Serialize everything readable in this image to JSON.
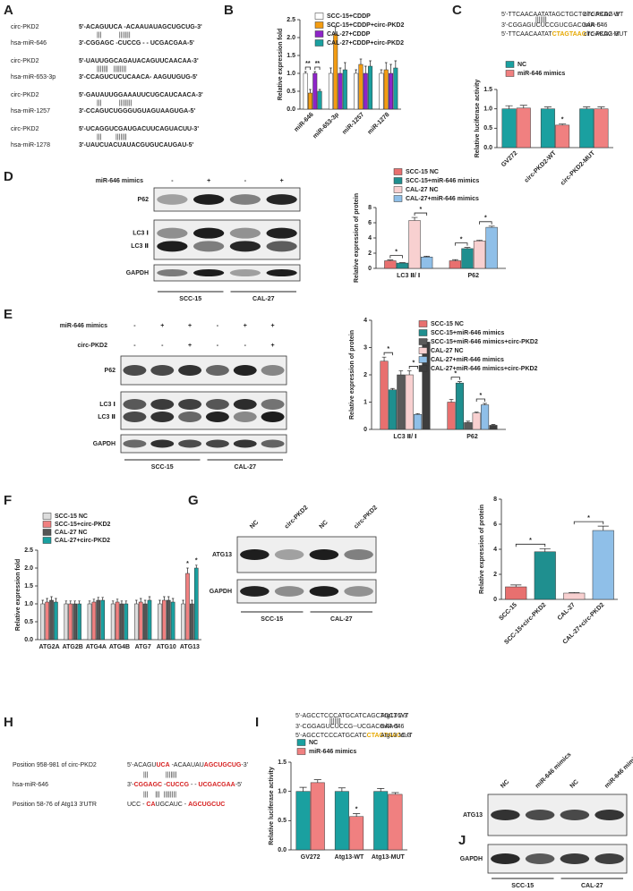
{
  "panel_labels": [
    "A",
    "B",
    "C",
    "D",
    "E",
    "F",
    "G",
    "H",
    "I",
    "J"
  ],
  "panel_a": [
    {
      "target": "circ-PKD2",
      "target_seq": "5'-ACAGUUCA -ACAAUAUAGCUGCUG-3'",
      "match": "|||          |||||||",
      "mirna": "hsa-miR-646",
      "mirna_seq": "3'-CGGAGC -CUCCG - - UCGACGAA-5'"
    },
    {
      "target": "circ-PKD2",
      "target_seq": "5'-UAUUGGCAGAUACAGUUCAACAA-3'",
      "match": "|||||||   ||||||||",
      "mirna": "hsa-miR-653-3p",
      "mirna_seq": "3'-CCAGUCUCUCAACA- AAGUUGUG-5'"
    },
    {
      "target": "circ-PKD2",
      "target_seq": "5'-GAUAUUGGAAAUUCUGCAUCAACA-3'",
      "match": "|||          ||||||||",
      "mirna": "hsa-miR-1257",
      "mirna_seq": "3'-CCAGUCUGGGUGUAGUAAGUGA-5'"
    },
    {
      "target": "circ-PKD2",
      "target_seq": "5'-UCAGGUCGAUGACUUCAGUACUU-3'",
      "match": "|||        |||||||",
      "mirna": "hsa-miR-1278",
      "mirna_seq": "3'-UAUCUACUAUACGUGUCAUGAU-5'"
    }
  ],
  "luciferase_c": {
    "wt": {
      "parts": [
        "5'-TTCAACAATATAGCTGCTGTCACAG-3'"
      ],
      "name": "circ-PKD2 WT"
    },
    "match": "|||||||",
    "mirna": {
      "parts": [
        "3'-CGGAGUCUCCGUCGACGAA-5'"
      ],
      "name": "miR-646"
    },
    "mut": {
      "parts": [
        "5'-TTCAACAATAT",
        "CTAGTAAG",
        "TCACAG-3'"
      ],
      "name": "circ-PKD2 MUT"
    }
  },
  "luciferase_i": {
    "wt": {
      "parts": [
        "5'-AGCCTCCCATGCATCAGCTGCTC-3'"
      ],
      "name": "Atg13 WT"
    },
    "match": "|||||||",
    "mirna": {
      "parts": [
        "3'-CGGAGUCUCCG--UCGACGAA-5'"
      ],
      "name": "miR-646"
    },
    "mut": {
      "parts": [
        "5'-AGCCTCCCATGCATC",
        "CTAGTAAC",
        "C-3'"
      ],
      "name": "Atg13 MUT"
    }
  },
  "panel_h": {
    "rows": [
      {
        "label": "Position 958-981 of circ-PKD2",
        "parts": [
          "5'-ACAGU",
          "UCA",
          " -ACAAUAU",
          "AGCUGCUG",
          "-3'"
        ]
      },
      {
        "label": "hsa-miR-646",
        "parts": [
          "3'-",
          "CGGAGC",
          " -",
          "CUCCG",
          " - - ",
          "UCGACGAA",
          "-5'"
        ]
      },
      {
        "label": "Position 58-76 of Atg13 3'UTR",
        "parts": [
          "UCC - ",
          "CA",
          "UGCAUC - ",
          "AGCUGCUC"
        ]
      }
    ],
    "matches": [
      "|||          |||||||",
      "|||    |||  ||||||||"
    ]
  },
  "blots": [
    {
      "treatments": [
        {
          "label": "miR-646 mimics",
          "signs": [
            "-",
            "+",
            "-",
            "+"
          ]
        }
      ],
      "rows": [
        [
          "P62"
        ],
        [
          "LC3 Ⅰ",
          "LC3 Ⅱ"
        ],
        [
          "GAPDH"
        ]
      ],
      "groups": [
        "SCC-15",
        "CAL-27"
      ]
    },
    {
      "treatments": [
        {
          "label": "miR-646 mimics",
          "signs": [
            "-",
            "+",
            "+",
            "-",
            "+",
            "+"
          ]
        },
        {
          "label": "circ-PKD2",
          "signs": [
            "-",
            "-",
            "+",
            "-",
            "-",
            "+"
          ]
        }
      ],
      "rows": [
        [
          "P62"
        ],
        [
          "LC3 Ⅰ",
          "LC3 Ⅱ"
        ],
        [
          "GAPDH"
        ]
      ],
      "groups": [
        "SCC-15",
        "CAL-27"
      ]
    },
    {
      "lanes": [
        "NC",
        "circ-PKD2",
        "NC",
        "circ-PKD2"
      ],
      "rows": [
        [
          "ATG13"
        ],
        [
          "GAPDH"
        ]
      ],
      "groups": [
        "SCC-15",
        "CAL-27"
      ]
    },
    {
      "lanes": [
        "NC",
        "miR-646 mimics",
        "NC",
        "miR-646 mimics"
      ],
      "rows": [
        [
          "ATG13"
        ],
        [
          "GAPDH"
        ]
      ],
      "groups": [
        "SCC-15",
        "CAL-27"
      ]
    }
  ],
  "chart_data": [
    {
      "type": "bar",
      "y_label": "Relative expression fold",
      "categories": [
        "miR-646",
        "miR-653-3p",
        "miR-1257",
        "miR-1278"
      ],
      "ylim": [
        0,
        2.5
      ],
      "yticks": [
        {
          "value": 0,
          "label": "0.0"
        },
        0.5,
        {
          "value": 1,
          "label": "1.0"
        },
        1.5,
        {
          "value": 2,
          "label": "2.0"
        },
        2.5
      ],
      "series": [
        {
          "name": "SCC-15+CDDP",
          "color": "#ffffff",
          "values": [
            1.0,
            1.0,
            1.0,
            1.0
          ],
          "errors": [
            0.05,
            0.15,
            0.1,
            0.1
          ]
        },
        {
          "name": "SCC-15+CDDP+circ-PKD2",
          "color": "#f39c12",
          "values": [
            0.45,
            2.1,
            1.25,
            1.1
          ],
          "errors": [
            0.1,
            0.2,
            0.15,
            0.2
          ]
        },
        {
          "name": "CAL-27+CDDP",
          "color": "#8e24c8",
          "values": [
            1.0,
            1.0,
            1.0,
            1.0
          ],
          "errors": [
            0.05,
            0.15,
            0.2,
            0.25
          ]
        },
        {
          "name": "CAL-27+CDDP+circ-PKD2",
          "color": "#1aa0a0",
          "values": [
            0.5,
            1.1,
            1.2,
            1.15
          ],
          "errors": [
            0.05,
            0.2,
            0.15,
            0.2
          ]
        }
      ],
      "annotations": [
        "**",
        "**"
      ]
    },
    {
      "type": "bar",
      "y_label": "Relative luciferase activity",
      "categories": [
        "GV272",
        "circ-PKD2-WT",
        "circ-PKD2-MUT"
      ],
      "ylim": [
        0,
        1.5
      ],
      "yticks": [
        {
          "value": 0,
          "label": "0.0"
        },
        0.5,
        {
          "value": 1,
          "label": "1.0"
        },
        1.5
      ],
      "series": [
        {
          "name": "NC",
          "color": "#1aa0a0",
          "values": [
            1.0,
            1.0,
            1.0
          ],
          "errors": [
            0.08,
            0.05,
            0.05
          ]
        },
        {
          "name": "miR-646 mimics",
          "color": "#f08080",
          "values": [
            1.02,
            0.58,
            1.0
          ],
          "errors": [
            0.07,
            0.03,
            0.05
          ]
        }
      ],
      "annotations": [
        "*"
      ]
    },
    {
      "type": "bar",
      "y_label": "Relative expression of protein",
      "categories": [
        "LC3 Ⅱ/ Ⅰ",
        "P62"
      ],
      "ylim": [
        0,
        8
      ],
      "yticks": [
        0,
        2,
        4,
        6,
        8
      ],
      "series": [
        {
          "name": "SCC-15 NC",
          "color": "#e8706f",
          "values": [
            1.0,
            1.0
          ],
          "errors": [
            0.1,
            0.15
          ]
        },
        {
          "name": "SCC-15+miR-646 mimics",
          "color": "#1f8f8f",
          "values": [
            0.7,
            2.6
          ],
          "errors": [
            0.05,
            0.15
          ]
        },
        {
          "name": "CAL-27 NC",
          "color": "#f8d0d0",
          "values": [
            6.3,
            3.6
          ],
          "errors": [
            0.4,
            0.1
          ]
        },
        {
          "name": "CAL-27+miR-646 mimics",
          "color": "#8fbfe8",
          "values": [
            1.5,
            5.4
          ],
          "errors": [
            0.1,
            0.15
          ]
        }
      ],
      "annotations": [
        "*",
        "*",
        "*",
        "*"
      ]
    },
    {
      "type": "bar",
      "y_label": "Relative expression of protein",
      "categories": [
        "LC3 Ⅱ/ Ⅰ",
        "P62"
      ],
      "ylim": [
        0,
        4
      ],
      "yticks": [
        0,
        1,
        2,
        3,
        4
      ],
      "series": [
        {
          "name": "SCC-15 NC",
          "color": "#e8706f",
          "values": [
            2.5,
            1.0
          ],
          "errors": [
            0.15,
            0.1
          ]
        },
        {
          "name": "SCC-15+miR-646 mimics",
          "color": "#1f8f8f",
          "values": [
            1.45,
            1.7
          ],
          "errors": [
            0.05,
            0.05
          ]
        },
        {
          "name": "SCC-15+miR-646 mimics+circ-PKD2",
          "color": "#5a5a5a",
          "values": [
            2.0,
            0.25
          ],
          "errors": [
            0.15,
            0.05
          ]
        },
        {
          "name": "CAL-27 NC",
          "color": "#f8d0d0",
          "values": [
            2.0,
            0.6
          ],
          "errors": [
            0.15,
            0.03
          ]
        },
        {
          "name": "CAL-27+miR-646 mimics",
          "color": "#8fbfe8",
          "values": [
            0.55,
            0.9
          ],
          "errors": [
            0.03,
            0.05
          ]
        },
        {
          "name": "CAL-27+miR-646 mimics+circ-PKD2",
          "color": "#3d3d3d",
          "values": [
            3.2,
            0.15
          ],
          "errors": [
            0.08,
            0.03
          ]
        }
      ],
      "annotations": [
        "*",
        "*",
        "*",
        "*"
      ]
    },
    {
      "type": "bar",
      "y_label": "Relative expression fold",
      "categories": [
        "ATG2A",
        "ATG2B",
        "ATG4A",
        "ATG4B",
        "ATG7",
        "ATG10",
        "ATG13"
      ],
      "ylim": [
        0,
        2.5
      ],
      "yticks": [
        {
          "value": 0,
          "label": "0.0"
        },
        0.5,
        {
          "value": 1,
          "label": "1.0"
        },
        1.5,
        {
          "value": 2,
          "label": "2.0"
        },
        2.5
      ],
      "series": [
        {
          "name": "SCC-15 NC",
          "color": "#dddddd",
          "values": [
            1.0,
            1.0,
            1.0,
            1.0,
            1.0,
            1.0,
            1.0
          ],
          "errors": [
            0.1,
            0.08,
            0.08,
            0.08,
            0.1,
            0.1,
            0.1
          ]
        },
        {
          "name": "SCC-15+circ-PKD2",
          "color": "#f08080",
          "values": [
            1.05,
            1.0,
            1.05,
            1.05,
            1.05,
            1.1,
            1.85
          ],
          "errors": [
            0.1,
            0.08,
            0.08,
            0.08,
            0.1,
            0.1,
            0.15
          ]
        },
        {
          "name": "CAL-27 NC",
          "color": "#555555",
          "values": [
            1.1,
            1.0,
            1.1,
            1.0,
            1.0,
            1.1,
            1.0
          ],
          "errors": [
            0.1,
            0.08,
            0.08,
            0.08,
            0.1,
            0.1,
            0.1
          ]
        },
        {
          "name": "CAL-27+circ-PKD2",
          "color": "#1aa0a0",
          "values": [
            1.05,
            1.0,
            1.1,
            1.0,
            1.1,
            1.05,
            2.0
          ],
          "errors": [
            0.1,
            0.08,
            0.08,
            0.08,
            0.1,
            0.1,
            0.08
          ]
        }
      ],
      "annotations": [
        "*",
        "*"
      ]
    },
    {
      "type": "bar",
      "y_label": "Relative expression of protein",
      "categories": [
        "SCC-15",
        "SCC-15+circ-PKD2",
        "CAL-27",
        "CAL-27+circ-PKD2"
      ],
      "ylim": [
        0,
        8
      ],
      "yticks": [
        0,
        2,
        4,
        6,
        8
      ],
      "values": [
        1.0,
        3.8,
        0.5,
        5.5
      ],
      "errors": [
        0.15,
        0.25,
        0.05,
        0.35
      ],
      "colors": [
        "#e8706f",
        "#1f8f8f",
        "#f8d0d0",
        "#8fbfe8"
      ],
      "annotations": [
        "*",
        "*"
      ]
    },
    {
      "type": "bar",
      "y_label": "Relative luciferase activity",
      "categories": [
        "GV272",
        "Atg13-WT",
        "Atg13-MUT"
      ],
      "ylim": [
        0,
        1.5
      ],
      "yticks": [
        {
          "value": 0,
          "label": "0.0"
        },
        0.5,
        {
          "value": 1,
          "label": "1.0"
        },
        1.5
      ],
      "series": [
        {
          "name": "NC",
          "color": "#1aa0a0",
          "values": [
            1.0,
            1.0,
            1.0
          ],
          "errors": [
            0.07,
            0.06,
            0.05
          ]
        },
        {
          "name": "miR-646 mimics",
          "color": "#f08080",
          "values": [
            1.15,
            0.57,
            0.95
          ],
          "errors": [
            0.05,
            0.05,
            0.03
          ]
        }
      ],
      "annotations": [
        "*"
      ]
    }
  ]
}
